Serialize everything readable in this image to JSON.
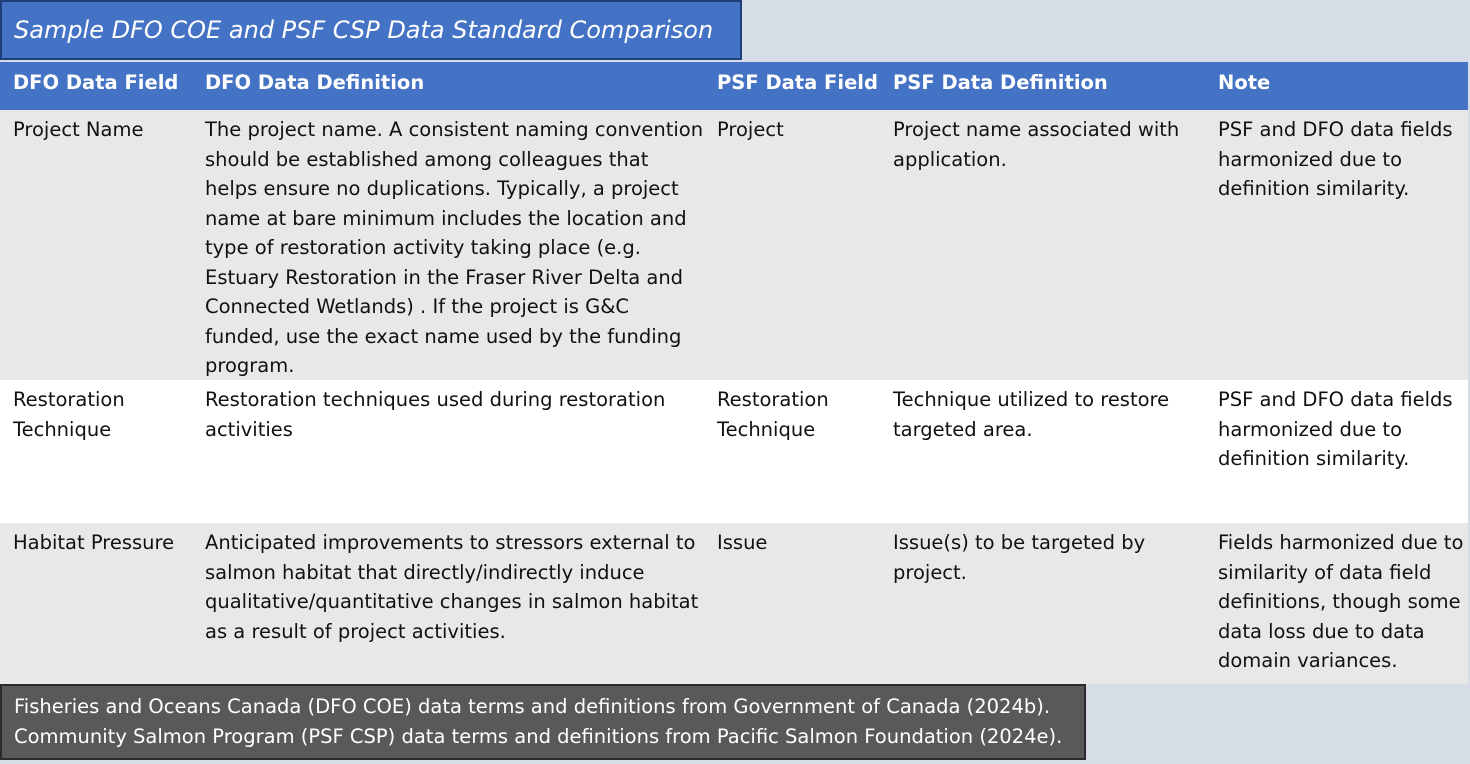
{
  "title": "Sample DFO COE and PSF CSP Data Standard Comparison",
  "headers": {
    "dfo_field": "DFO Data Field",
    "dfo_definition": "DFO Data Definition",
    "psf_field": "PSF Data Field",
    "psf_definition": "PSF Data Definition",
    "note": "Note"
  },
  "rows": [
    {
      "dfo_field": "Project Name",
      "dfo_definition": "The project name. A consistent naming convention should be established among colleagues that helps ensure no duplications. Typically, a project name at bare minimum includes the location and type of restoration activity taking place (e.g. Estuary Restoration in the Fraser River Delta and Connected Wetlands) . If the project is G&C funded, use the exact name used by the funding program.",
      "psf_field": "Project",
      "psf_definition": "Project name associated with application.",
      "note": "PSF and DFO data fields harmonized due to definition similarity."
    },
    {
      "dfo_field": "Restoration Technique",
      "dfo_definition": "Restoration techniques used during restoration activities",
      "psf_field": "Restoration Technique",
      "psf_definition": "Technique utilized to restore targeted area.",
      "note": "PSF and DFO data fields harmonized due to definition similarity."
    },
    {
      "dfo_field": "Habitat Pressure",
      "dfo_definition": "Anticipated improvements to stressors external to salmon habitat that directly/indirectly induce qualitative/quantitative changes in salmon habitat as a result of project activities.",
      "psf_field": "Issue",
      "psf_definition": "Issue(s) to be targeted by project.",
      "note": "Fields harmonized due to similarity of data field definitions, though some data loss due to data domain variances."
    }
  ],
  "footer": {
    "line1": "Fisheries and Oceans Canada (DFO COE) data terms and definitions from Government of Canada (2024b).",
    "line2": "Community Salmon Program (PSF CSP) data terms and definitions from Pacific Salmon Foundation (2024e)."
  },
  "colors": {
    "header_blue": "#4472c4",
    "row_gray": "#e8e8e8",
    "row_white": "#ffffff",
    "footer_gray": "#595959",
    "background": "#d6dde6"
  }
}
